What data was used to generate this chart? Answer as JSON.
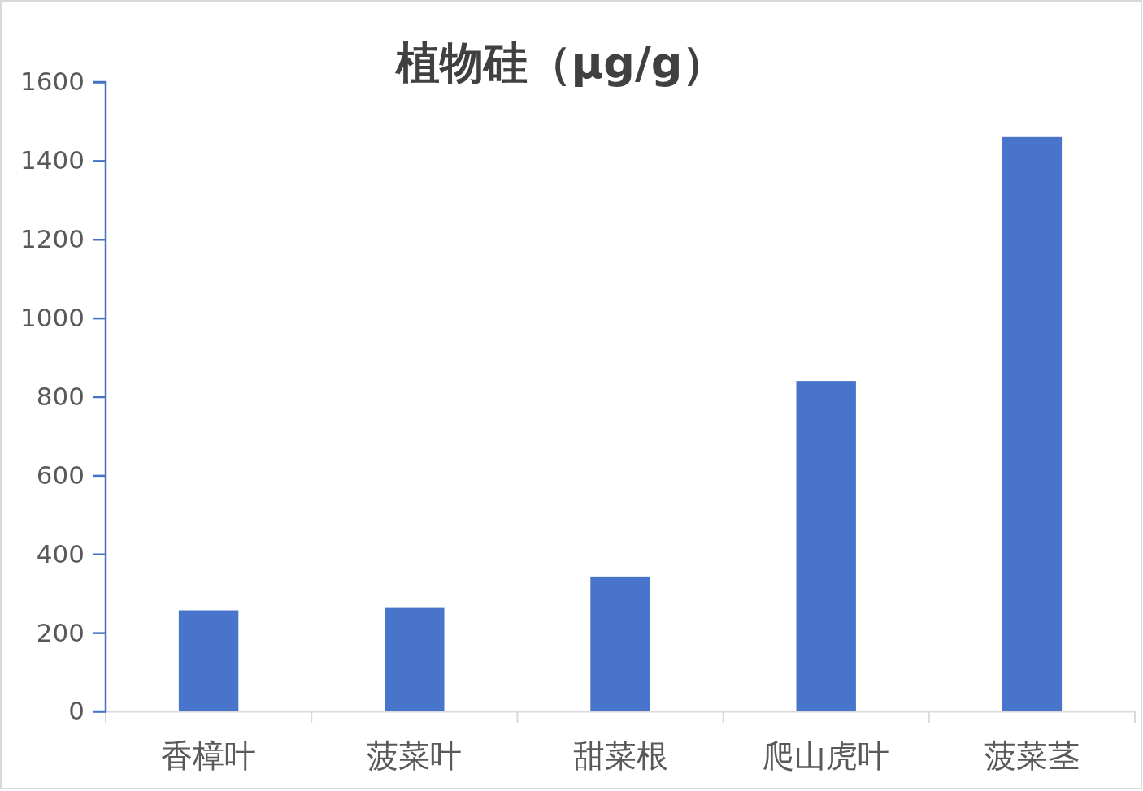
{
  "chart_data": {
    "type": "bar",
    "title": "植物硅（μg/g）",
    "categories": [
      "香樟叶",
      "菠菜叶",
      "甜菜根",
      "爬山虎叶",
      "菠菜茎"
    ],
    "values": [
      257,
      263,
      343,
      840,
      1460
    ],
    "color": "#4874cb",
    "ylim": [
      0,
      1600
    ],
    "yticks": [
      0,
      200,
      400,
      600,
      800,
      1000,
      1200,
      1400,
      1600
    ],
    "grid": false
  }
}
